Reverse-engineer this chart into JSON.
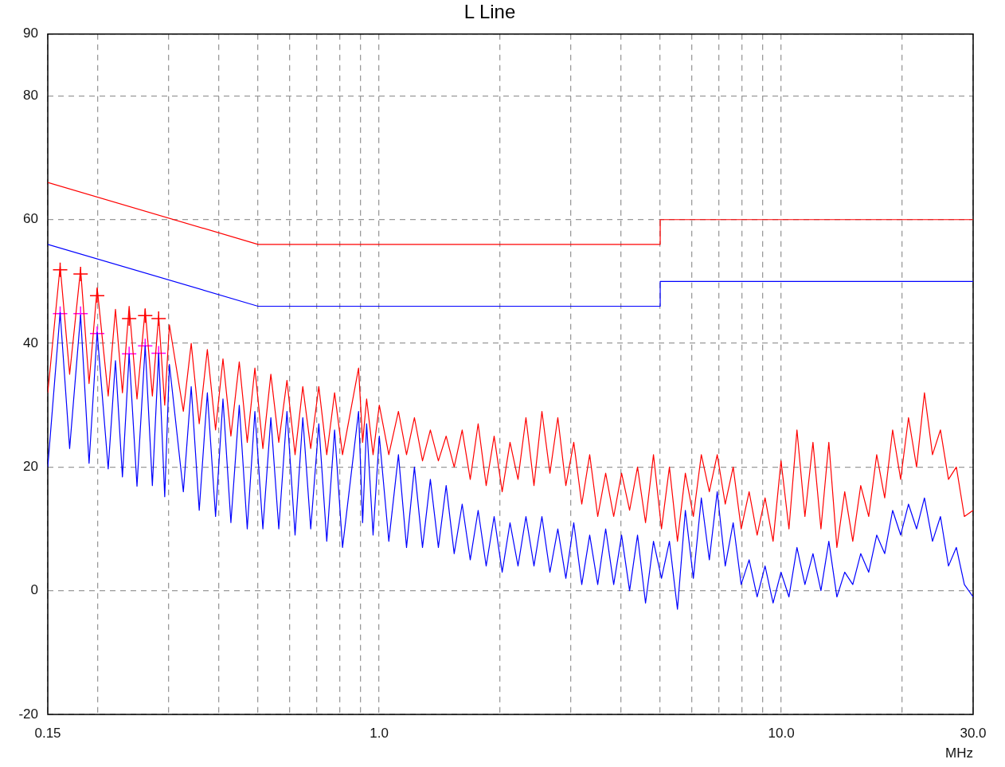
{
  "chart_data": {
    "type": "line",
    "title": "L Line",
    "xlabel": "MHz",
    "log": "x",
    "grid": true,
    "legend": false,
    "xlim": [
      0.15,
      30
    ],
    "xticks": [
      0.15,
      {
        "value": 0.2,
        "label": null
      },
      {
        "value": 0.3,
        "label": null
      },
      {
        "value": 0.4,
        "label": null
      },
      {
        "value": 0.5,
        "label": null
      },
      {
        "value": 0.6,
        "label": null
      },
      {
        "value": 0.7,
        "label": null
      },
      {
        "value": 0.8,
        "label": null
      },
      {
        "value": 0.9,
        "label": null
      },
      {
        "value": 1,
        "label": "1.0"
      },
      {
        "value": 2,
        "label": null
      },
      {
        "value": 3,
        "label": null
      },
      {
        "value": 4,
        "label": null
      },
      {
        "value": 5,
        "label": null
      },
      {
        "value": 6,
        "label": null
      },
      {
        "value": 7,
        "label": null
      },
      {
        "value": 8,
        "label": null
      },
      {
        "value": 9,
        "label": null
      },
      {
        "value": 10,
        "label": "10.0"
      },
      {
        "value": 20,
        "label": null
      },
      {
        "value": 30,
        "label": "30.0"
      }
    ],
    "ylim": [
      -20,
      90
    ],
    "yticks": [
      -20,
      0,
      20,
      40,
      60,
      80,
      90
    ],
    "x": [
      0.15,
      0.161,
      0.17,
      0.181,
      0.19,
      0.199,
      0.212,
      0.221,
      0.23,
      0.239,
      0.25,
      0.262,
      0.273,
      0.283,
      0.293,
      0.301,
      0.326,
      0.341,
      0.357,
      0.374,
      0.392,
      0.409,
      0.428,
      0.449,
      0.47,
      0.491,
      0.514,
      0.538,
      0.563,
      0.59,
      0.618,
      0.646,
      0.676,
      0.708,
      0.741,
      0.775,
      0.811,
      0.889,
      0.91,
      0.931,
      0.966,
      1.001,
      1.057,
      1.117,
      1.17,
      1.224,
      1.282,
      1.341,
      1.404,
      1.468,
      1.537,
      1.609,
      1.685,
      1.763,
      1.846,
      1.932,
      2.023,
      2.116,
      2.215,
      2.318,
      2.427,
      2.54,
      2.659,
      2.782,
      2.913,
      3.048,
      3.191,
      3.339,
      3.496,
      3.659,
      3.831,
      4.008,
      4.196,
      4.391,
      4.597,
      4.811,
      5.037,
      5.271,
      5.519,
      5.774,
      6.045,
      6.327,
      6.624,
      6.93,
      7.256,
      7.593,
      7.949,
      8.319,
      8.71,
      9.114,
      9.542,
      9.985,
      10.45,
      10.94,
      11.45,
      11.99,
      12.55,
      13.13,
      13.75,
      14.38,
      15.06,
      15.76,
      16.5,
      17.27,
      18.08,
      18.92,
      19.81,
      20.72,
      21.7,
      22.7,
      23.77,
      24.88,
      26.05,
      27.25,
      28.53,
      30
    ],
    "series": [
      {
        "type": "line",
        "color": "#ff0000",
        "values": [
          32,
          52.5,
          35,
          52,
          33.5,
          49,
          31.5,
          45.5,
          32,
          46,
          31,
          45.5,
          31.5,
          44.5,
          30,
          43,
          29,
          40,
          27,
          39,
          26,
          37.5,
          25,
          37,
          24,
          36,
          23,
          35,
          24,
          34,
          22,
          33,
          23,
          33,
          22,
          32,
          22,
          36,
          24,
          31,
          22,
          30,
          22,
          29,
          22,
          28,
          21,
          26,
          21,
          25,
          20,
          26,
          18,
          27,
          17,
          25,
          16,
          24,
          18,
          28,
          17,
          29,
          19,
          28,
          17,
          24,
          14,
          22,
          12,
          19,
          12,
          19,
          13,
          20,
          11,
          22,
          10,
          20,
          8,
          19,
          12,
          22,
          16,
          22,
          14,
          20,
          10,
          16,
          9,
          15,
          8,
          21,
          10,
          26,
          12,
          24,
          10,
          24,
          7,
          16,
          8,
          17,
          12,
          22,
          15,
          26,
          18,
          28,
          20,
          32,
          22,
          26,
          18,
          20,
          12,
          13
        ]
      },
      {
        "type": "line",
        "color": "#0000ff",
        "values": [
          20,
          45,
          23,
          44.6,
          20.6,
          41.8,
          19.7,
          37.2,
          18.4,
          38.3,
          16.9,
          39.6,
          17,
          38.4,
          15.2,
          36.6,
          16,
          33,
          13,
          32,
          12,
          31,
          11,
          30,
          10,
          29,
          10,
          28,
          10,
          29,
          9,
          28,
          10,
          27,
          8,
          26,
          7,
          29,
          11,
          27,
          9,
          25,
          8,
          22,
          7,
          20,
          7,
          18,
          7,
          17,
          6,
          14,
          5,
          13,
          4,
          12,
          3,
          11,
          4,
          12,
          4,
          12,
          3,
          10,
          2,
          11,
          1,
          9,
          1,
          10,
          1,
          9,
          0,
          9,
          -2,
          8,
          2,
          8,
          -3,
          13,
          2,
          15,
          5,
          16,
          4,
          11,
          1,
          5,
          -1,
          4,
          -2,
          3,
          -1,
          7,
          1,
          6,
          0,
          8,
          -1,
          3,
          1,
          6,
          3,
          9,
          6,
          13,
          9,
          14,
          10,
          15,
          8,
          12,
          4,
          7,
          1,
          -1
        ]
      },
      {
        "type": "line",
        "color": "#ff0000",
        "x": [
          0.15,
          0.5,
          5,
          5,
          30
        ],
        "values": [
          66,
          56,
          56,
          60,
          60
        ]
      },
      {
        "type": "line",
        "color": "#0000ff",
        "x": [
          0.15,
          0.5,
          5,
          5,
          30
        ],
        "values": [
          56,
          46,
          46,
          50,
          50
        ]
      },
      {
        "type": "scatter",
        "color": "#ff0000",
        "marker": "cross",
        "x": [
          0.161,
          0.181,
          0.199,
          0.239,
          0.262,
          0.283
        ],
        "values": [
          51.9,
          51.2,
          47.7,
          44,
          44.5,
          44
        ]
      },
      {
        "type": "scatter",
        "color": "#ff00ff",
        "marker": "cross",
        "x": [
          0.161,
          0.181,
          0.199,
          0.239,
          0.262,
          0.283
        ],
        "values": [
          44.8,
          44.8,
          41.6,
          38.3,
          39.6,
          38.4
        ]
      }
    ]
  }
}
